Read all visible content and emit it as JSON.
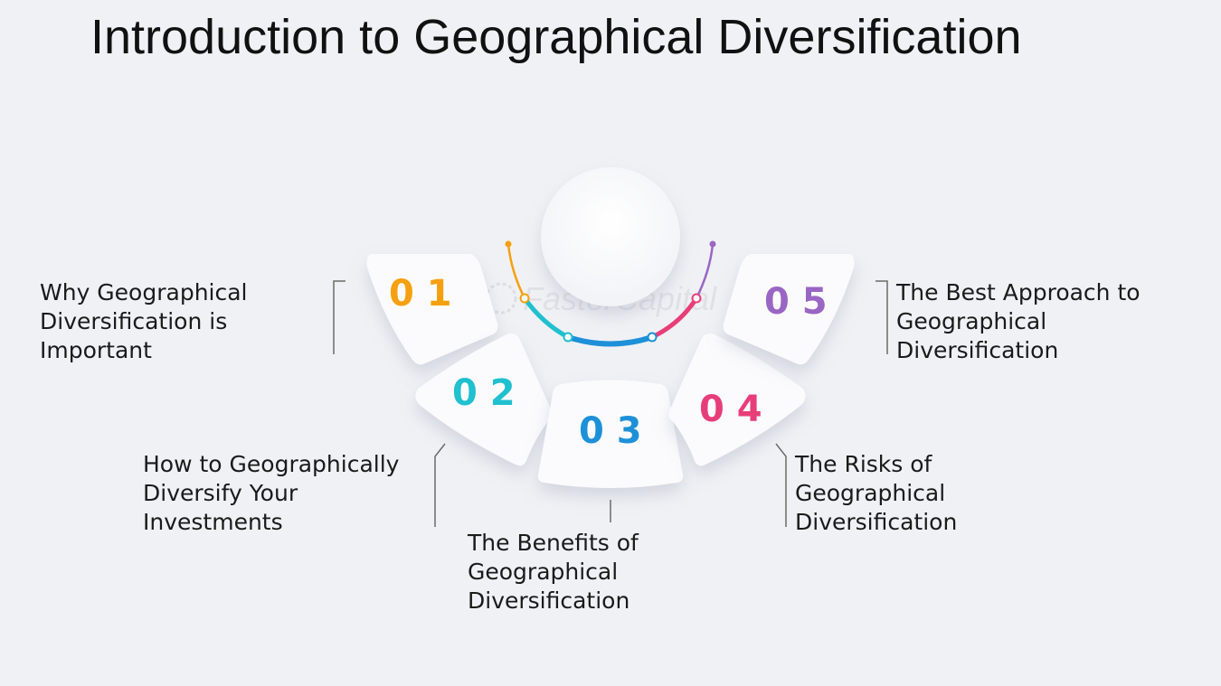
{
  "title": "Introduction to Geographical Diversification",
  "watermark": "FasterCapital",
  "steps": [
    {
      "number": "0 1",
      "color": "#f5a00f",
      "lines": [
        "Why Geographical",
        "Diversification is",
        "Important"
      ]
    },
    {
      "number": "0 2",
      "color": "#20c0cf",
      "lines": [
        "How to Geographically",
        "Diversify Your",
        "Investments"
      ]
    },
    {
      "number": "0 3",
      "color": "#1e90d8",
      "lines": [
        "The Benefits of",
        "Geographical",
        "Diversification"
      ]
    },
    {
      "number": "0 4",
      "color": "#e83e78",
      "lines": [
        "The Risks of",
        "Geographical",
        "Diversification"
      ]
    },
    {
      "number": "0 5",
      "color": "#9a66c4",
      "lines": [
        "The Best Approach to",
        "Geographical",
        "Diversification"
      ]
    }
  ]
}
